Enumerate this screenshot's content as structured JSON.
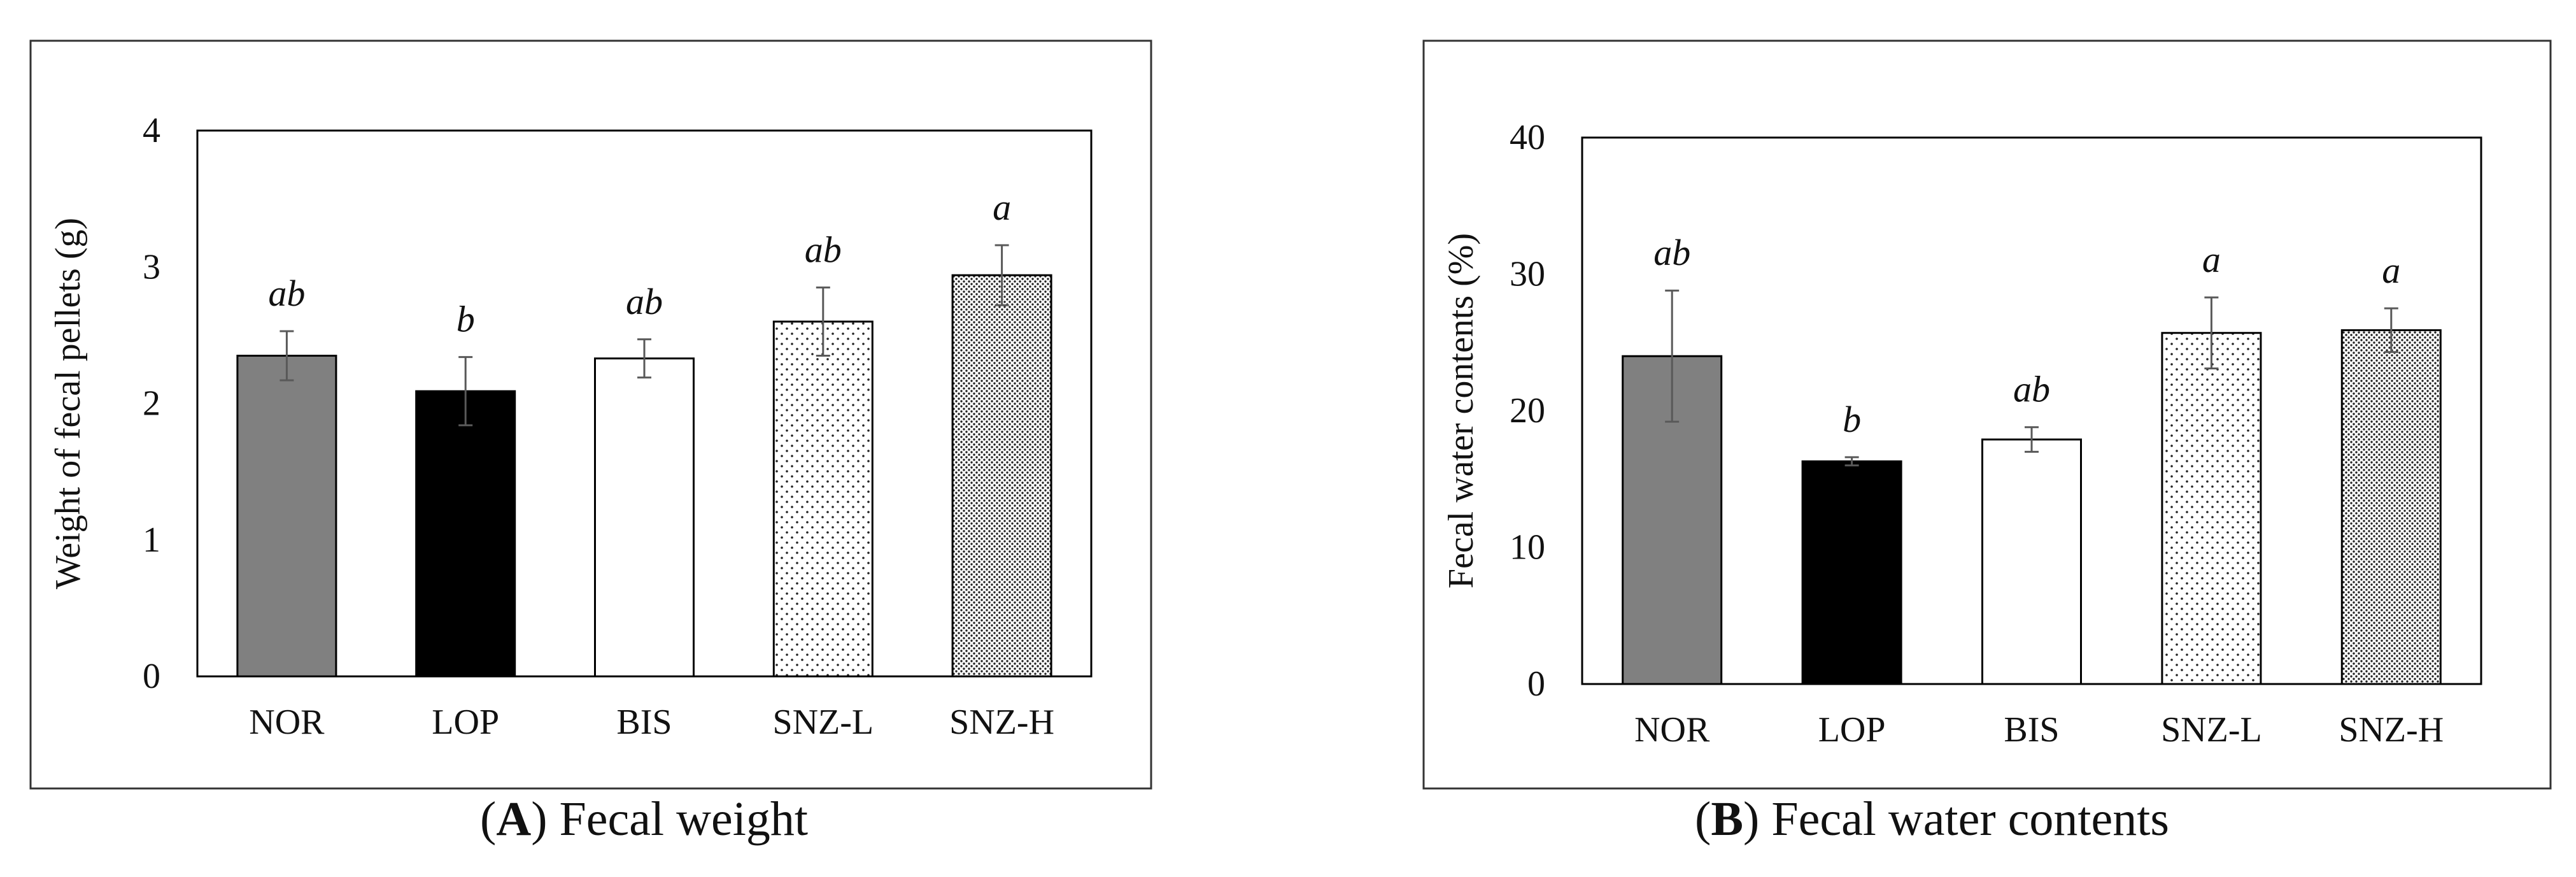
{
  "chart_data": [
    {
      "type": "bar",
      "panel_letter": "A",
      "caption_title": "Fecal weight",
      "title": "",
      "ylabel": "Weight of fecal pellets (g)",
      "xlabel": "",
      "ylim": [
        0,
        4
      ],
      "yticks": [
        0,
        1,
        2,
        3,
        4
      ],
      "grid": false,
      "categories": [
        "NOR",
        "LOP",
        "BIS",
        "SNZ-L",
        "SNZ-H"
      ],
      "values": [
        2.35,
        2.09,
        2.33,
        2.6,
        2.94
      ],
      "errors": [
        0.18,
        0.25,
        0.14,
        0.25,
        0.22
      ],
      "labels": [
        "ab",
        "b",
        "ab",
        "ab",
        "a"
      ],
      "fills": [
        "gray",
        "black",
        "white",
        "dots-sparse",
        "dots-dense"
      ]
    },
    {
      "type": "bar",
      "panel_letter": "B",
      "caption_title": "Fecal water contents",
      "title": "",
      "ylabel": "Fecal water contents (%)",
      "xlabel": "",
      "ylim": [
        0,
        40
      ],
      "yticks": [
        0,
        10,
        20,
        30,
        40
      ],
      "grid": false,
      "categories": [
        "NOR",
        "LOP",
        "BIS",
        "SNZ-L",
        "SNZ-H"
      ],
      "values": [
        24.0,
        16.3,
        17.9,
        25.7,
        25.9
      ],
      "errors": [
        4.8,
        0.3,
        0.9,
        2.6,
        1.6
      ],
      "labels": [
        "ab",
        "b",
        "ab",
        "a",
        "a"
      ],
      "fills": [
        "gray",
        "black",
        "white",
        "dots-sparse",
        "dots-dense"
      ]
    }
  ],
  "colors": {
    "gray": "#808080",
    "black": "#000000",
    "white": "#ffffff",
    "axis": "#000000",
    "error": "#595959"
  }
}
